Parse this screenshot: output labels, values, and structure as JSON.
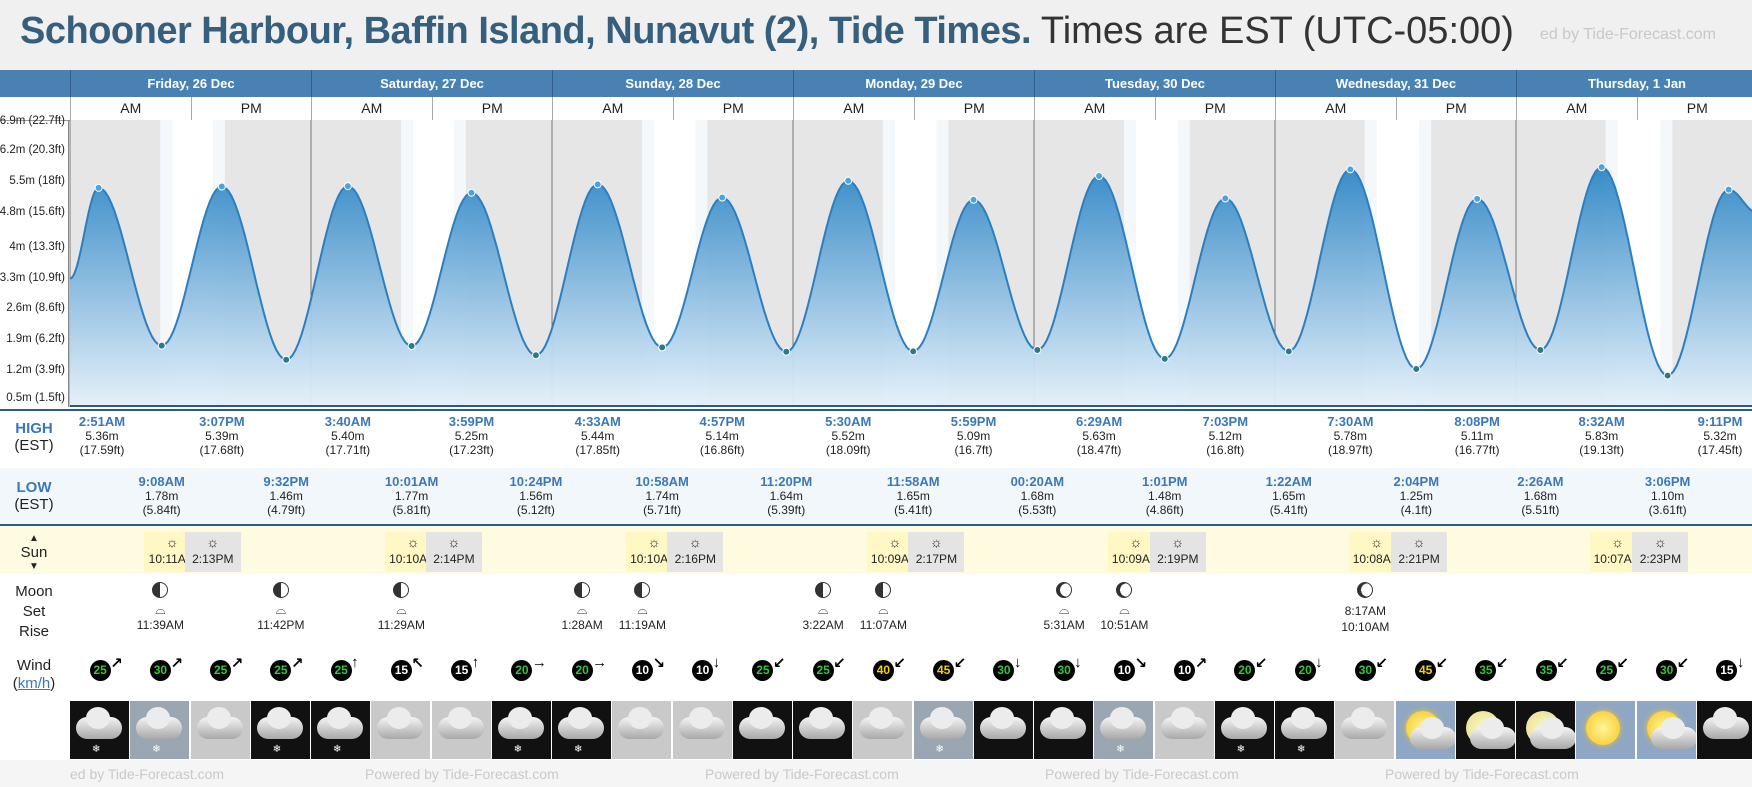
{
  "header": {
    "title_bold": "Schooner Harbour, Baffin Island, Nunavut (2), Tide Times.",
    "title_rest": "Times are EST (UTC-05:00)",
    "brand": "ed by Tide-Forecast.com"
  },
  "days": [
    "Friday, 26 Dec",
    "Saturday, 27 Dec",
    "Sunday, 28 Dec",
    "Monday, 29 Dec",
    "Tuesday, 30 Dec",
    "Wednesday, 31 Dec",
    "Thursday, 1 Jan"
  ],
  "ampm": [
    "AM",
    "PM"
  ],
  "row_labels": {
    "high": "HIGH",
    "high_tz": "(EST)",
    "low": "LOW",
    "low_tz": "(EST)",
    "sun": "Sun",
    "moon1": "Moon",
    "moon2": "Set",
    "moon3": "Rise",
    "wind": "Wind",
    "wind_unit": "km/h"
  },
  "chart_data": {
    "type": "area",
    "y_ticks": [
      "6.9m (22.7ft)",
      "6.2m (20.3ft)",
      "5.5m (18ft)",
      "4.8m (15.6ft)",
      "4m (13.3ft)",
      "3.3m (10.9ft)",
      "2.6m (8.6ft)",
      "1.9m (6.2ft)",
      "1.2m (3.9ft)",
      "0.5m (1.5ft)"
    ],
    "ylim": [
      0.5,
      6.9
    ],
    "x_range_hours": [
      0,
      168
    ],
    "series": [
      {
        "points": [
          [
            0,
            3.3
          ],
          [
            2.85,
            5.36
          ],
          [
            9.13,
            1.78
          ],
          [
            15.12,
            5.39
          ],
          [
            21.53,
            1.46
          ],
          [
            27.67,
            5.4
          ],
          [
            34.02,
            1.77
          ],
          [
            39.98,
            5.25
          ],
          [
            46.4,
            1.56
          ],
          [
            52.55,
            5.44
          ],
          [
            58.97,
            1.74
          ],
          [
            64.95,
            5.14
          ],
          [
            71.33,
            1.64
          ],
          [
            77.5,
            5.52
          ],
          [
            83.97,
            1.65
          ],
          [
            89.98,
            5.09
          ],
          [
            96.33,
            1.68
          ],
          [
            102.48,
            5.63
          ],
          [
            109.02,
            1.48
          ],
          [
            115.05,
            5.12
          ],
          [
            121.37,
            1.65
          ],
          [
            127.5,
            5.78
          ],
          [
            134.07,
            1.25
          ],
          [
            140.13,
            5.11
          ],
          [
            146.43,
            1.68
          ],
          [
            152.53,
            5.83
          ],
          [
            159.1,
            1.1
          ],
          [
            165.18,
            5.32
          ],
          [
            168,
            4.8
          ]
        ]
      }
    ]
  },
  "high_tides": [
    {
      "day": 0,
      "time": "2:51AM",
      "m": "5.36m",
      "ft": "(17.59ft)",
      "h": 2.85
    },
    {
      "day": 0,
      "time": "3:07PM",
      "m": "5.39m",
      "ft": "(17.68ft)",
      "h": 15.12
    },
    {
      "day": 1,
      "time": "3:40AM",
      "m": "5.40m",
      "ft": "(17.71ft)",
      "h": 27.67
    },
    {
      "day": 1,
      "time": "3:59PM",
      "m": "5.25m",
      "ft": "(17.23ft)",
      "h": 39.98
    },
    {
      "day": 2,
      "time": "4:33AM",
      "m": "5.44m",
      "ft": "(17.85ft)",
      "h": 52.55
    },
    {
      "day": 2,
      "time": "4:57PM",
      "m": "5.14m",
      "ft": "(16.86ft)",
      "h": 64.95
    },
    {
      "day": 3,
      "time": "5:30AM",
      "m": "5.52m",
      "ft": "(18.09ft)",
      "h": 77.5
    },
    {
      "day": 3,
      "time": "5:59PM",
      "m": "5.09m",
      "ft": "(16.7ft)",
      "h": 89.98
    },
    {
      "day": 4,
      "time": "6:29AM",
      "m": "5.63m",
      "ft": "(18.47ft)",
      "h": 102.48
    },
    {
      "day": 4,
      "time": "7:03PM",
      "m": "5.12m",
      "ft": "(16.8ft)",
      "h": 115.05
    },
    {
      "day": 5,
      "time": "7:30AM",
      "m": "5.78m",
      "ft": "(18.97ft)",
      "h": 127.5
    },
    {
      "day": 5,
      "time": "8:08PM",
      "m": "5.11m",
      "ft": "(16.77ft)",
      "h": 140.13
    },
    {
      "day": 6,
      "time": "8:32AM",
      "m": "5.83m",
      "ft": "(19.13ft)",
      "h": 152.53
    },
    {
      "day": 6,
      "time": "9:11PM",
      "m": "5.32m",
      "ft": "(17.45ft)",
      "h": 165.18
    }
  ],
  "low_tides": [
    {
      "time": "9:08AM",
      "m": "1.78m",
      "ft": "(5.84ft)",
      "h": 9.13
    },
    {
      "time": "9:32PM",
      "m": "1.46m",
      "ft": "(4.79ft)",
      "h": 21.53
    },
    {
      "time": "10:01AM",
      "m": "1.77m",
      "ft": "(5.81ft)",
      "h": 34.02
    },
    {
      "time": "10:24PM",
      "m": "1.56m",
      "ft": "(5.12ft)",
      "h": 46.4
    },
    {
      "time": "10:58AM",
      "m": "1.74m",
      "ft": "(5.71ft)",
      "h": 58.97
    },
    {
      "time": "11:20PM",
      "m": "1.64m",
      "ft": "(5.39ft)",
      "h": 71.33
    },
    {
      "time": "11:58AM",
      "m": "1.65m",
      "ft": "(5.41ft)",
      "h": 83.97
    },
    {
      "time": "00:20AM",
      "m": "1.68m",
      "ft": "(5.53ft)",
      "h": 96.33
    },
    {
      "time": "1:01PM",
      "m": "1.48m",
      "ft": "(4.86ft)",
      "h": 109.02
    },
    {
      "time": "1:22AM",
      "m": "1.65m",
      "ft": "(5.41ft)",
      "h": 121.37
    },
    {
      "time": "2:04PM",
      "m": "1.25m",
      "ft": "(4.1ft)",
      "h": 134.07
    },
    {
      "time": "2:26AM",
      "m": "1.68m",
      "ft": "(5.51ft)",
      "h": 146.43
    },
    {
      "time": "3:06PM",
      "m": "1.10m",
      "ft": "(3.61ft)",
      "h": 159.1
    }
  ],
  "sun": [
    {
      "rise": "10:11AM",
      "set": "2:13PM",
      "rh": 10.18,
      "sh": 14.22
    },
    {
      "rise": "10:10AM",
      "set": "2:14PM",
      "rh": 34.17,
      "sh": 38.23
    },
    {
      "rise": "10:10AM",
      "set": "2:16PM",
      "rh": 58.17,
      "sh": 62.27
    },
    {
      "rise": "10:09AM",
      "set": "2:17PM",
      "rh": 82.15,
      "sh": 86.28
    },
    {
      "rise": "10:09AM",
      "set": "2:19PM",
      "rh": 106.15,
      "sh": 110.32
    },
    {
      "rise": "10:08AM",
      "set": "2:21PM",
      "rh": 130.13,
      "sh": 134.35
    },
    {
      "rise": "10:07AM",
      "set": "2:23PM",
      "rh": 154.12,
      "sh": 158.38
    }
  ],
  "moon": [
    {
      "time": "11:39AM",
      "h": 9,
      "ph": "first"
    },
    {
      "time": "11:42PM",
      "h": 21,
      "ph": "first"
    },
    {
      "time": "11:29AM",
      "h": 33,
      "ph": "first"
    },
    {
      "time": "1:28AM",
      "h": 51,
      "ph": "first"
    },
    {
      "time": "11:19AM",
      "h": 57,
      "ph": "first"
    },
    {
      "time": "3:22AM",
      "h": 75,
      "ph": "first"
    },
    {
      "time": "11:07AM",
      "h": 81,
      "ph": "first"
    },
    {
      "time": "5:31AM",
      "h": 99,
      "ph": "rev"
    },
    {
      "time": "10:51AM",
      "h": 105,
      "ph": "rev"
    }
  ],
  "moon_extra": {
    "top": "8:17AM",
    "bottom": "10:10AM",
    "h": 129
  },
  "wind": [
    {
      "v": "25",
      "dir": "↗",
      "c": "#35c43b"
    },
    {
      "v": "30",
      "dir": "↗",
      "c": "#35c43b"
    },
    {
      "v": "25",
      "dir": "↗",
      "c": "#35c43b"
    },
    {
      "v": "25",
      "dir": "↗",
      "c": "#35c43b"
    },
    {
      "v": "25",
      "dir": "↑",
      "c": "#35c43b"
    },
    {
      "v": "15",
      "dir": "↖",
      "c": "#ffffff"
    },
    {
      "v": "15",
      "dir": "↑",
      "c": "#ffffff"
    },
    {
      "v": "20",
      "dir": "→",
      "c": "#35c43b"
    },
    {
      "v": "20",
      "dir": "→",
      "c": "#35c43b"
    },
    {
      "v": "10",
      "dir": "↘",
      "c": "#ffffff"
    },
    {
      "v": "10",
      "dir": "↓",
      "c": "#ffffff"
    },
    {
      "v": "25",
      "dir": "↙",
      "c": "#35c43b"
    },
    {
      "v": "25",
      "dir": "↙",
      "c": "#35c43b"
    },
    {
      "v": "40",
      "dir": "↙",
      "c": "#f2d21b"
    },
    {
      "v": "45",
      "dir": "↙",
      "c": "#f2d21b"
    },
    {
      "v": "30",
      "dir": "↓",
      "c": "#35c43b"
    },
    {
      "v": "30",
      "dir": "↓",
      "c": "#35c43b"
    },
    {
      "v": "10",
      "dir": "↘",
      "c": "#ffffff"
    },
    {
      "v": "10",
      "dir": "↗",
      "c": "#ffffff"
    },
    {
      "v": "20",
      "dir": "↙",
      "c": "#35c43b"
    },
    {
      "v": "20",
      "dir": "↓",
      "c": "#35c43b"
    },
    {
      "v": "30",
      "dir": "↙",
      "c": "#35c43b"
    },
    {
      "v": "45",
      "dir": "↙",
      "c": "#f2d21b"
    },
    {
      "v": "35",
      "dir": "↙",
      "c": "#35c43b"
    },
    {
      "v": "35",
      "dir": "↙",
      "c": "#35c43b"
    },
    {
      "v": "25",
      "dir": "↙",
      "c": "#35c43b"
    },
    {
      "v": "30",
      "dir": "↙",
      "c": "#35c43b"
    },
    {
      "v": "15",
      "dir": "↓",
      "c": "#ffffff"
    }
  ],
  "weather": [
    {
      "bg": "#111",
      "icon": "cloud",
      "snow": true
    },
    {
      "bg": "#9aa7b3",
      "icon": "cloud",
      "snow": true
    },
    {
      "bg": "#c9c9c9",
      "icon": "cloud",
      "snow": false
    },
    {
      "bg": "#111",
      "icon": "cloud",
      "snow": true
    },
    {
      "bg": "#111",
      "icon": "cloud",
      "snow": true
    },
    {
      "bg": "#c9c9c9",
      "icon": "cloud",
      "snow": false
    },
    {
      "bg": "#c9c9c9",
      "icon": "cloud",
      "snow": false
    },
    {
      "bg": "#111",
      "icon": "cloud",
      "snow": true
    },
    {
      "bg": "#111",
      "icon": "cloud",
      "snow": true
    },
    {
      "bg": "#c9c9c9",
      "icon": "cloud",
      "snow": false
    },
    {
      "bg": "#c9c9c9",
      "icon": "cloud",
      "snow": false
    },
    {
      "bg": "#111",
      "icon": "cloud",
      "snow": false
    },
    {
      "bg": "#111",
      "icon": "cloud",
      "snow": false
    },
    {
      "bg": "#c9c9c9",
      "icon": "cloud",
      "snow": false
    },
    {
      "bg": "#9aa7b3",
      "icon": "cloud",
      "snow": true
    },
    {
      "bg": "#111",
      "icon": "cloud",
      "snow": false
    },
    {
      "bg": "#111",
      "icon": "cloud",
      "snow": false
    },
    {
      "bg": "#9aa7b3",
      "icon": "cloud",
      "snow": true
    },
    {
      "bg": "#c9c9c9",
      "icon": "cloud",
      "snow": false
    },
    {
      "bg": "#111",
      "icon": "cloud",
      "snow": true
    },
    {
      "bg": "#111",
      "icon": "cloud",
      "snow": true
    },
    {
      "bg": "#c9c9c9",
      "icon": "cloud",
      "snow": false
    },
    {
      "bg": "#8fa7c4",
      "icon": "sun-cloud",
      "snow": false
    },
    {
      "bg": "#111",
      "icon": "moon-cloud",
      "snow": false
    },
    {
      "bg": "#111",
      "icon": "moon-cloud",
      "snow": false
    },
    {
      "bg": "#8fa7c4",
      "icon": "sun",
      "snow": false
    },
    {
      "bg": "#8fa7c4",
      "icon": "sun-cloud",
      "snow": false
    },
    {
      "bg": "#111",
      "icon": "cloud",
      "snow": false
    }
  ],
  "footer_brand": "Powered by Tide-Forecast.com",
  "footer_brand_cut": "ed by Tide-Forecast.com"
}
